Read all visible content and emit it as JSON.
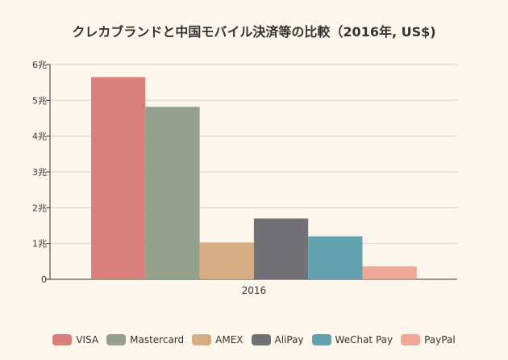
{
  "chart_data": {
    "type": "bar",
    "title": "クレカブランドと中国モバイル決済等の比較（2016年, US$)",
    "categories": [
      "2016"
    ],
    "series": [
      {
        "name": "VISA",
        "values": [
          5.65
        ],
        "color": "#d9807e"
      },
      {
        "name": "Mastercard",
        "values": [
          4.82
        ],
        "color": "#94a08c"
      },
      {
        "name": "AMEX",
        "values": [
          1.03
        ],
        "color": "#d8ac82"
      },
      {
        "name": "AliPay",
        "values": [
          1.7
        ],
        "color": "#717175"
      },
      {
        "name": "WeChat Pay",
        "values": [
          1.2
        ],
        "color": "#62a1ad"
      },
      {
        "name": "PayPal",
        "values": [
          0.36
        ],
        "color": "#f0a896"
      }
    ],
    "ylim": [
      0,
      6
    ],
    "yticks": [
      0,
      1,
      2,
      3,
      4,
      5,
      6
    ],
    "ytick_labels": [
      "0",
      "1兆",
      "2兆",
      "3兆",
      "4兆",
      "5兆",
      "6兆"
    ],
    "xlabel": "",
    "ylabel": "",
    "grid": true,
    "legend_position": "bottom"
  }
}
